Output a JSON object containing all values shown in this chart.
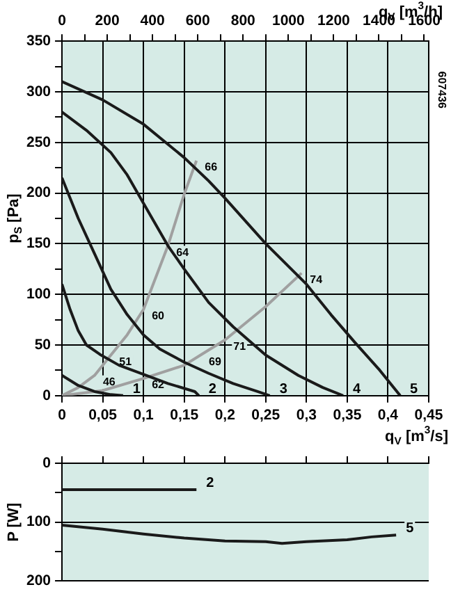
{
  "chart_data": [
    {
      "type": "line",
      "xlabel": "q$_{V}$ [m$^{3}$/s]",
      "ylabel": "p$_{S}$ [Pa]",
      "x2label": "q$_{V}$ [m$^{3}$/h]",
      "xlim": [
        0,
        0.45
      ],
      "xticks": [
        0,
        {
          "value": 0.05,
          "label": "0,05"
        },
        {
          "value": 0.1,
          "label": "0,1"
        },
        {
          "value": 0.15,
          "label": "0,15"
        },
        {
          "value": 0.2,
          "label": "0,2"
        },
        {
          "value": 0.25,
          "label": "0,25"
        },
        {
          "value": 0.3,
          "label": "0,3"
        },
        {
          "value": 0.35,
          "label": "0,35"
        },
        {
          "value": 0.4,
          "label": "0,4"
        },
        {
          "value": 0.45,
          "label": "0,45"
        }
      ],
      "x2lim": [
        0,
        1620
      ],
      "x2ticks": [
        0,
        {
          "value": 100,
          "label": null
        },
        200,
        {
          "value": 300,
          "label": null
        },
        400,
        {
          "value": 500,
          "label": null
        },
        600,
        {
          "value": 700,
          "label": null
        },
        800,
        {
          "value": 900,
          "label": null
        },
        1000,
        {
          "value": 1100,
          "label": null
        },
        1200,
        {
          "value": 1300,
          "label": null
        },
        1400,
        {
          "value": 1500,
          "label": null
        },
        1600
      ],
      "ylim": [
        0,
        350
      ],
      "yticks": [
        0,
        {
          "value": 25,
          "label": null
        },
        50,
        {
          "value": 75,
          "label": null
        },
        100,
        {
          "value": 125,
          "label": null
        },
        150,
        {
          "value": 175,
          "label": null
        },
        200,
        {
          "value": 225,
          "label": null
        },
        250,
        {
          "value": 275,
          "label": null
        },
        300,
        {
          "value": 325,
          "label": null
        },
        350
      ],
      "grid": true,
      "series": [
        {
          "name": "1",
          "color": "#1a1a1a",
          "x": [
            0,
            0.02,
            0.04,
            0.06,
            0.075
          ],
          "values": [
            20,
            10,
            4,
            1,
            0
          ]
        },
        {
          "name": "2",
          "color": "#1a1a1a",
          "x": [
            0,
            0.01,
            0.02,
            0.03,
            0.048,
            0.07,
            0.097,
            0.13,
            0.163,
            0.168
          ],
          "values": [
            110,
            85,
            64,
            50,
            40,
            30,
            22,
            12,
            4,
            0
          ]
        },
        {
          "name": "3",
          "color": "#1a1a1a",
          "x": [
            0,
            0.02,
            0.04,
            0.06,
            0.08,
            0.1,
            0.12,
            0.15,
            0.18,
            0.21,
            0.24,
            0.255
          ],
          "values": [
            215,
            175,
            140,
            105,
            80,
            60,
            46,
            33,
            22,
            12,
            4,
            0
          ]
        },
        {
          "name": "4",
          "color": "#1a1a1a",
          "x": [
            0,
            0.03,
            0.06,
            0.08,
            0.1,
            0.13,
            0.15,
            0.18,
            0.21,
            0.25,
            0.29,
            0.32,
            0.345
          ],
          "values": [
            280,
            262,
            240,
            218,
            190,
            148,
            125,
            92,
            68,
            40,
            20,
            8,
            0
          ]
        },
        {
          "name": "5",
          "color": "#1a1a1a",
          "x": [
            0,
            0.05,
            0.1,
            0.15,
            0.18,
            0.2,
            0.25,
            0.3,
            0.33,
            0.36,
            0.39,
            0.415
          ],
          "values": [
            310,
            292,
            268,
            235,
            212,
            195,
            150,
            110,
            80,
            52,
            25,
            0
          ]
        },
        {
          "color": "#a0a0a0",
          "x": [
            0,
            0.02,
            0.04,
            0.06,
            0.08,
            0.1,
            0.13,
            0.15,
            0.165
          ],
          "values": [
            0,
            8,
            20,
            40,
            60,
            85,
            148,
            199,
            232
          ]
        },
        {
          "color": "#a0a0a0",
          "x": [
            0,
            0.05,
            0.1,
            0.15,
            0.17,
            0.2,
            0.25,
            0.294
          ],
          "values": [
            0,
            5,
            17,
            30,
            40,
            55,
            88,
            121
          ]
        }
      ],
      "annotations": [
        {
          "text": "46",
          "x": 0.04,
          "y": 20
        },
        {
          "text": "51",
          "x": 0.06,
          "y": 40
        },
        {
          "text": "60",
          "x": 0.1,
          "y": 85
        },
        {
          "text": "64",
          "x": 0.13,
          "y": 148
        },
        {
          "text": "66",
          "x": 0.165,
          "y": 232
        },
        {
          "text": "62",
          "x": 0.1,
          "y": 17
        },
        {
          "text": "69",
          "x": 0.17,
          "y": 40
        },
        {
          "text": "71",
          "x": 0.2,
          "y": 55
        },
        {
          "text": "74",
          "x": 0.294,
          "y": 121
        },
        "607436"
      ]
    },
    {
      "type": "line",
      "ylabel": "P [W]",
      "xlim": [
        0,
        0.45
      ],
      "xticks": [
        {
          "value": 0,
          "label": null
        },
        {
          "value": 0.05,
          "label": null
        },
        {
          "value": 0.1,
          "label": null
        },
        {
          "value": 0.15,
          "label": null
        },
        {
          "value": 0.2,
          "label": null
        },
        {
          "value": 0.25,
          "label": null
        },
        {
          "value": 0.3,
          "label": null
        },
        {
          "value": 0.35,
          "label": null
        },
        {
          "value": 0.4,
          "label": null
        },
        {
          "value": 0.45,
          "label": null
        }
      ],
      "ylim": [
        200,
        0
      ],
      "yticks": [
        0,
        {
          "value": 50,
          "label": null
        },
        100,
        {
          "value": 150,
          "label": null
        },
        200
      ],
      "grid": true,
      "tick_labels": "y",
      "series": [
        {
          "name": "2",
          "color": "#1a1a1a",
          "x": [
            0,
            0.165
          ],
          "values": [
            45,
            45
          ]
        },
        {
          "name": "5",
          "color": "#1a1a1a",
          "x": [
            0,
            0.05,
            0.1,
            0.15,
            0.2,
            0.25,
            0.27,
            0.3,
            0.35,
            0.38,
            0.41
          ],
          "values": [
            105,
            112,
            120,
            127,
            132,
            133,
            136,
            133,
            130,
            125,
            122
          ]
        }
      ]
    }
  ]
}
